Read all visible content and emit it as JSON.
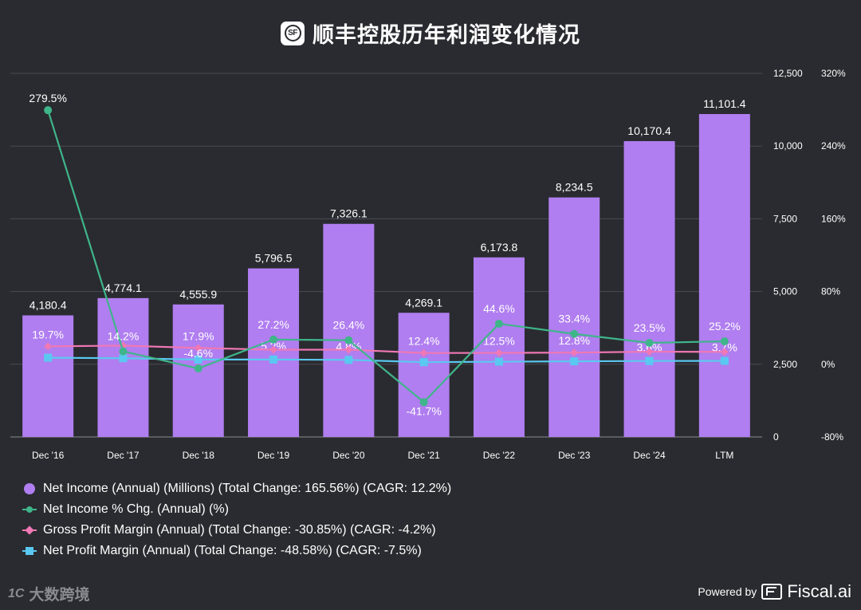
{
  "title": "顺丰控股历年利润变化情况",
  "logo_text": "SF",
  "chart_data": {
    "type": "bar",
    "categories": [
      "Dec '16",
      "Dec '17",
      "Dec '18",
      "Dec '19",
      "Dec '20",
      "Dec '21",
      "Dec '22",
      "Dec '23",
      "Dec '24",
      "LTM"
    ],
    "left_axis": {
      "range": [
        0,
        12500
      ],
      "ticks": [
        "0",
        "2,500",
        "5,000",
        "7,500",
        "10,000",
        "12,500"
      ]
    },
    "right_axis": {
      "range": [
        -80,
        320
      ],
      "ticks": [
        "-80%",
        "0%",
        "80%",
        "160%",
        "240%",
        "320%"
      ]
    },
    "grid": true,
    "series": [
      {
        "name": "Net Income (Annual) (Millions) (Total Change: 165.56%) (CAGR: 12.2%)",
        "type": "bar",
        "axis": "left",
        "color": "#b07ef0",
        "values": [
          4180.4,
          4774.1,
          4555.9,
          5796.5,
          7326.1,
          4269.1,
          6173.8,
          8234.5,
          10170.4,
          11101.4
        ],
        "labels": [
          "4,180.4",
          "4,774.1",
          "4,555.9",
          "5,796.5",
          "7,326.1",
          "4,269.1",
          "6,173.8",
          "8,234.5",
          "10,170.4",
          "11,101.4"
        ]
      },
      {
        "name": "Net Income % Chg. (Annual) (%)",
        "type": "line",
        "axis": "right",
        "color": "#3fb58a",
        "marker": "circle",
        "values": [
          279.5,
          14.2,
          -4.6,
          27.2,
          26.4,
          -41.7,
          44.6,
          33.4,
          23.5,
          25.2
        ],
        "labels": [
          "279.5%",
          "14.2%",
          "-4.6%",
          "27.2%",
          "26.4%",
          "-41.7%",
          "44.6%",
          "33.4%",
          "23.5%",
          "25.2%"
        ]
      },
      {
        "name": "Gross Profit Margin (Annual) (Total Change: -30.85%) (CAGR: -4.2%)",
        "type": "line",
        "axis": "right",
        "color": "#f078b4",
        "marker": "diamond",
        "values": [
          19.7,
          20.5,
          17.9,
          16.0,
          16.0,
          12.4,
          12.5,
          12.8,
          13.8,
          13.6
        ],
        "labels": [
          "19.7%",
          "",
          "17.9%",
          "",
          "",
          "12.4%",
          "12.5%",
          "12.8%",
          "",
          ""
        ]
      },
      {
        "name": "Net Profit Margin (Annual) (Total Change: -48.58%) (CAGR: -7.5%)",
        "type": "line",
        "axis": "right",
        "color": "#5ac8f0",
        "marker": "square",
        "values": [
          7.2,
          6.6,
          5.2,
          5.2,
          4.8,
          2.3,
          2.8,
          3.2,
          3.6,
          3.7
        ],
        "labels": [
          "",
          "",
          "",
          "5.2%",
          "4.8%",
          "",
          "",
          "",
          "3.6%",
          "3.7%"
        ]
      }
    ]
  },
  "footer": {
    "watermark_icon": "1C",
    "watermark": "大数跨境",
    "powered_by": "Powered by",
    "brand": "Fiscal.ai"
  }
}
